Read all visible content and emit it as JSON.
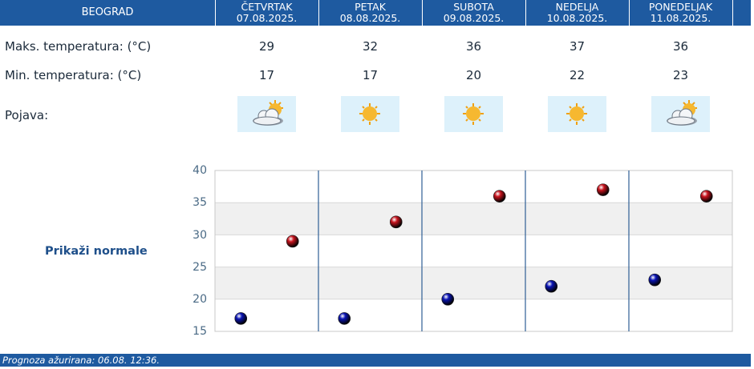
{
  "header": {
    "city": "BEOGRAD",
    "days": [
      {
        "name": "ČETVRTAK",
        "date": "07.08.2025."
      },
      {
        "name": "PETAK",
        "date": "08.08.2025."
      },
      {
        "name": "SUBOTA",
        "date": "09.08.2025."
      },
      {
        "name": "NEDELJA",
        "date": "10.08.2025."
      },
      {
        "name": "PONEDELJAK",
        "date": "11.08.2025."
      }
    ]
  },
  "rows": {
    "max_label": "Maks. temperatura: (°C)",
    "min_label": "Min. temperatura: (°C)",
    "pojava_label": "Pojava:",
    "max_values": [
      "29",
      "32",
      "36",
      "37",
      "36"
    ],
    "min_values": [
      "17",
      "17",
      "20",
      "22",
      "23"
    ],
    "icons": [
      "partly-cloudy-icon",
      "sun-icon",
      "sun-icon",
      "sun-icon",
      "partly-cloudy-icon"
    ]
  },
  "normale_label": "Prikaži normale",
  "footer": {
    "text": "Prognoza ažurirana:  06.08. 12:36."
  },
  "colors": {
    "header_bg": "#1e5aa0",
    "max_marker": "#c8141e",
    "min_marker": "#0a14b4",
    "icon_bg": "#ddf1fb"
  },
  "chart_data": {
    "type": "scatter",
    "categories": [
      "07.08.2025.",
      "08.08.2025.",
      "09.08.2025.",
      "10.08.2025.",
      "11.08.2025."
    ],
    "yticks": [
      "15",
      "20",
      "25",
      "30",
      "35",
      "40"
    ],
    "ylim": [
      15,
      40
    ],
    "grid": true,
    "series": [
      {
        "values": [
          29,
          32,
          36,
          37,
          36
        ],
        "color": "#c8141e"
      },
      {
        "values": [
          17,
          17,
          20,
          22,
          23
        ],
        "color": "#0a14b4"
      }
    ]
  }
}
